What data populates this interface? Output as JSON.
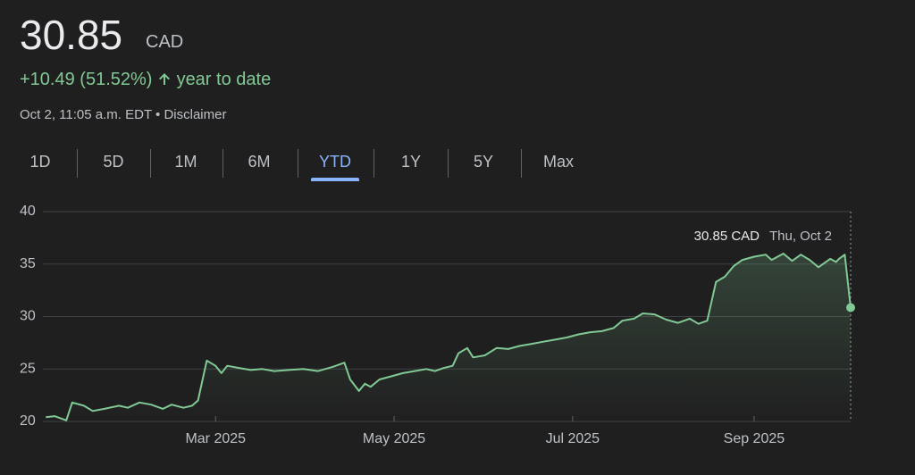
{
  "header": {
    "price": "30.85",
    "currency": "CAD",
    "change": "+10.49 (51.52%)",
    "period": "year to date",
    "timestamp": "Oct 2, 11:05 a.m. EDT",
    "separator": "•",
    "disclaimer": "Disclaimer"
  },
  "tabs": [
    "1D",
    "5D",
    "1M",
    "6M",
    "YTD",
    "1Y",
    "5Y",
    "Max"
  ],
  "selected_tab": "YTD",
  "chart_data": {
    "type": "line",
    "color": "#81c995",
    "grid": true,
    "x": [
      2,
      5,
      9,
      11,
      15,
      18,
      22,
      27,
      30,
      34,
      38,
      42,
      45,
      49,
      52,
      54,
      57,
      60,
      62,
      64,
      68,
      72,
      76,
      80,
      85,
      90,
      95,
      100,
      104,
      106,
      109,
      111,
      113,
      116,
      120,
      124,
      128,
      132,
      135,
      138,
      141,
      143,
      146,
      148,
      152,
      156,
      160,
      164,
      168,
      172,
      176,
      180,
      184,
      188,
      192,
      196,
      199,
      203,
      206,
      210,
      214,
      218,
      222,
      225,
      228,
      231,
      234,
      237,
      240,
      244,
      248,
      250,
      254,
      257,
      260,
      263,
      266,
      270,
      272,
      273,
      275,
      277
    ],
    "values": [
      20.4,
      20.5,
      20.1,
      21.8,
      21.5,
      21.0,
      21.2,
      21.5,
      21.3,
      21.8,
      21.6,
      21.2,
      21.6,
      21.3,
      21.5,
      22.0,
      25.8,
      25.3,
      24.6,
      25.3,
      25.1,
      24.9,
      25.0,
      24.8,
      24.9,
      25.0,
      24.8,
      25.2,
      25.6,
      24.0,
      22.9,
      23.6,
      23.3,
      24.0,
      24.3,
      24.6,
      24.8,
      25.0,
      24.8,
      25.1,
      25.3,
      26.5,
      27.0,
      26.1,
      26.3,
      27.0,
      26.9,
      27.2,
      27.4,
      27.6,
      27.8,
      28.0,
      28.3,
      28.5,
      28.6,
      28.9,
      29.6,
      29.8,
      30.3,
      30.2,
      29.7,
      29.4,
      29.8,
      29.3,
      29.6,
      33.3,
      33.8,
      34.8,
      35.4,
      35.7,
      35.9,
      35.4,
      36.0,
      35.3,
      35.9,
      35.4,
      34.7,
      35.5,
      35.2,
      35.5,
      35.9,
      30.85
    ],
    "xlim": [
      1,
      277
    ],
    "xticks": [
      {
        "value": 60,
        "label": "Mar 2025"
      },
      {
        "value": 121,
        "label": "May 2025"
      },
      {
        "value": 182,
        "label": "Jul 2025"
      },
      {
        "value": 244,
        "label": "Sep 2025"
      }
    ],
    "ylim": [
      20,
      40
    ],
    "yticks": [
      20,
      25,
      30,
      35,
      40
    ],
    "annotation": {
      "price": "30.85 CAD",
      "date": "Thu, Oct 2"
    }
  }
}
